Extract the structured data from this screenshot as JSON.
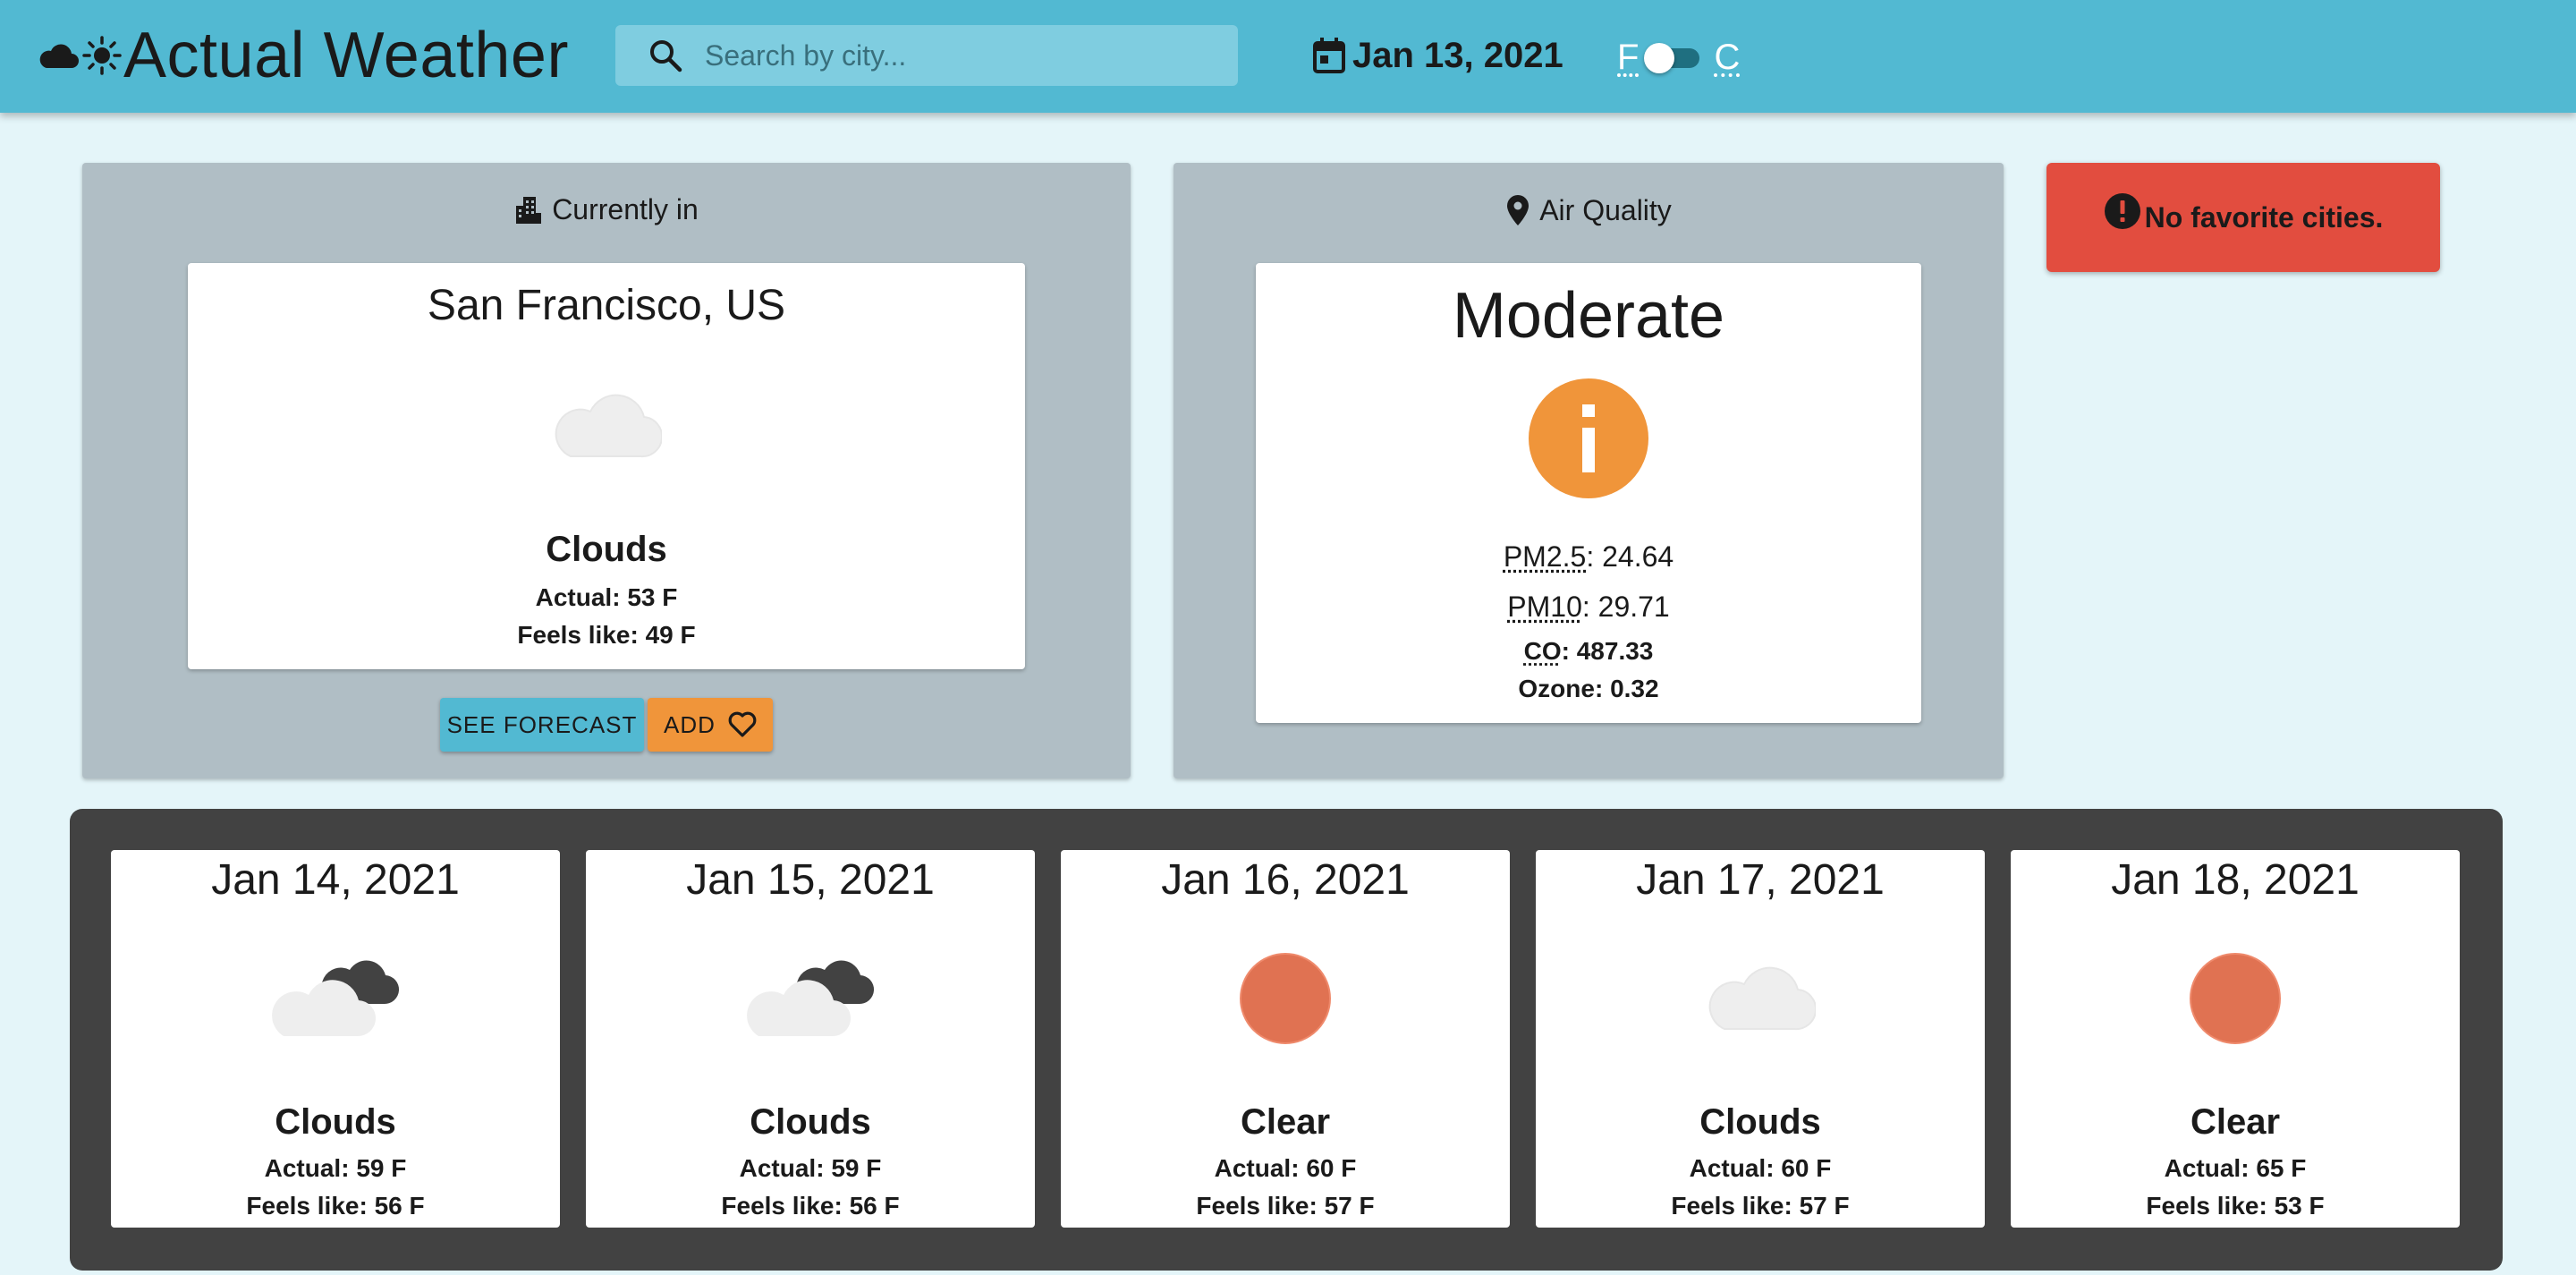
{
  "header": {
    "brand_title": "Actual Weather",
    "brand_icons": [
      "cloud-icon",
      "sun-icon"
    ],
    "search_placeholder": "Search by city...",
    "date": "Jan 13, 2021",
    "unit_left": "F",
    "unit_right": "C",
    "unit_selected": "F"
  },
  "current": {
    "heading": "Currently in",
    "heading_icon": "city-icon",
    "city": "San Francisco, US",
    "icon": "cloud-icon",
    "condition": "Clouds",
    "actual": "Actual: 53 F",
    "feels_like": "Feels like: 49 F",
    "forecast_button": "SEE FORECAST",
    "add_button": "ADD",
    "add_icon": "heart-outline-icon"
  },
  "air_quality": {
    "heading": "Air Quality",
    "heading_icon": "location-pin-icon",
    "level": "Moderate",
    "level_icon": "info-icon",
    "level_color": "#f0953a",
    "pm25_label": "PM2.5",
    "pm25_value": ": 24.64",
    "pm10_label": "PM10",
    "pm10_value": ": 29.71",
    "co_label": "CO",
    "co_value": ": 487.33",
    "ozone": "Ozone: 0.32"
  },
  "favorites": {
    "message": "No favorite cities.",
    "icon": "alert-circle-icon",
    "color": "#e24d3f"
  },
  "forecast": [
    {
      "date": "Jan 14, 2021",
      "icon": "clouds-icon",
      "condition": "Clouds",
      "actual": "Actual: 59 F",
      "feels_like": "Feels like: 56 F"
    },
    {
      "date": "Jan 15, 2021",
      "icon": "clouds-icon",
      "condition": "Clouds",
      "actual": "Actual: 59 F",
      "feels_like": "Feels like: 56 F"
    },
    {
      "date": "Jan 16, 2021",
      "icon": "clear-sun-icon",
      "condition": "Clear",
      "actual": "Actual: 60 F",
      "feels_like": "Feels like: 57 F"
    },
    {
      "date": "Jan 17, 2021",
      "icon": "cloud-icon",
      "condition": "Clouds",
      "actual": "Actual: 60 F",
      "feels_like": "Feels like: 57 F"
    },
    {
      "date": "Jan 18, 2021",
      "icon": "clear-sun-icon",
      "condition": "Clear",
      "actual": "Actual: 65 F",
      "feels_like": "Feels like: 53 F"
    }
  ],
  "colors": {
    "header": "#52b9d2",
    "background": "#e4f5f9",
    "panel": "#b0bec5",
    "forecast_bg": "#424242",
    "clear_sun": "#e07252"
  }
}
